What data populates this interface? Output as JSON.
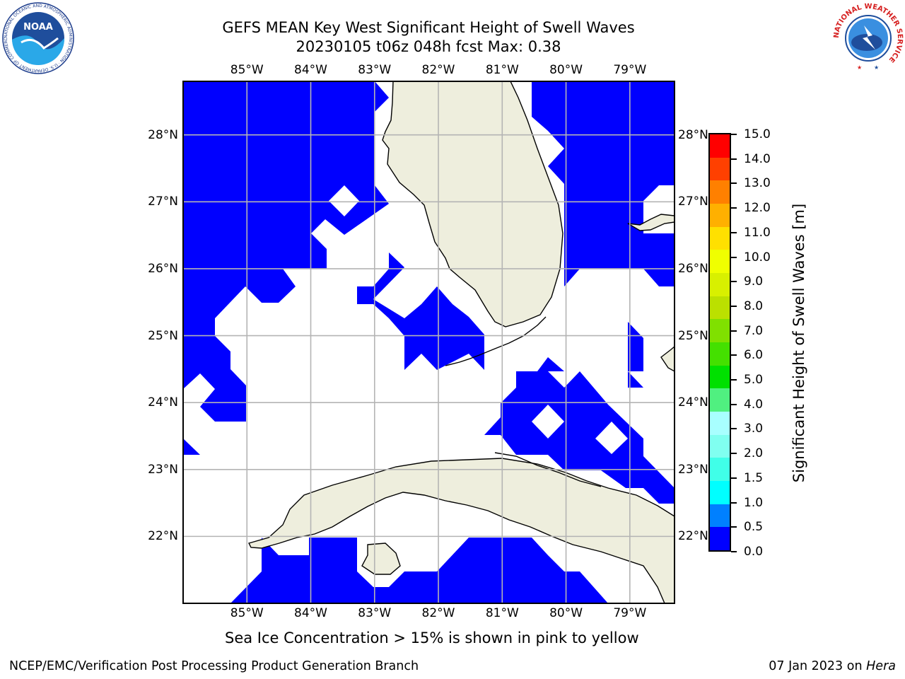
{
  "title": {
    "line1": "GEFS MEAN Key West Significant Height of Swell Waves",
    "line2": "20230105 t06z 048h fcst   Max: 0.38"
  },
  "map": {
    "lon_labels": [
      "85°W",
      "84°W",
      "83°W",
      "82°W",
      "81°W",
      "80°W",
      "79°W"
    ],
    "lat_labels": [
      "28°N",
      "27°N",
      "26°N",
      "25°N",
      "24°N",
      "23°N",
      "22°N"
    ],
    "extent": {
      "lon_min": -86.0,
      "lon_max": -78.3,
      "lat_min": 21.0,
      "lat_max": 28.8
    },
    "land_color": "#eeeedd",
    "grid_color": "#b4b4b4",
    "wave_fill_color": "#0000ff",
    "wave_field_value_range_m": "0.0–0.5"
  },
  "colorbar": {
    "label": "Significant Height of Swell Waves [m]",
    "ticks": [
      "0.0",
      "0.5",
      "1.0",
      "1.5",
      "2.0",
      "3.0",
      "4.0",
      "5.0",
      "6.0",
      "7.0",
      "8.0",
      "9.0",
      "10.0",
      "11.0",
      "12.0",
      "13.0",
      "14.0",
      "15.0"
    ],
    "colors": [
      "#0000ff",
      "#0080ff",
      "#00ffff",
      "#40ffe8",
      "#80fff0",
      "#a8ffff",
      "#50f080",
      "#00e000",
      "#44e000",
      "#80e000",
      "#bbe000",
      "#d8f000",
      "#f0ff00",
      "#ffe000",
      "#ffb000",
      "#ff8000",
      "#ff4000",
      "#ff0000"
    ]
  },
  "note": "Sea Ice Concentration > 15% is shown in pink to yellow",
  "footer": {
    "left": "NCEP/EMC/Verification Post Processing Product Generation Branch",
    "date": "07 Jan 2023 on",
    "machine": "Hera"
  },
  "logos": {
    "noaa_text": "NOAA",
    "noaa_ring_text": "NATIONAL OCEANIC AND ATMOSPHERIC ADMINISTRATION · U.S. DEPARTMENT OF COMMERCE",
    "nws_text": "NATIONAL WEATHER SERVICE"
  }
}
